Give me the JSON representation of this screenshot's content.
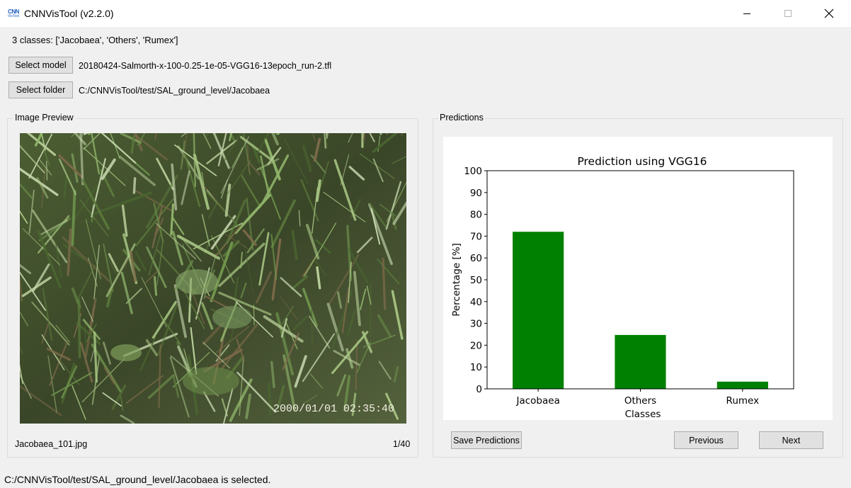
{
  "window": {
    "title": "CNNVisTool (v2.2.0)",
    "icon_line1": "CNN",
    "icon_line2": "VisTool",
    "minimize_icon": "minimize-icon",
    "maximize_icon": "maximize-icon",
    "close_icon": "close-icon"
  },
  "classes_label": "3 classes: ['Jacobaea', 'Others', 'Rumex']",
  "model": {
    "button_label": "Select model",
    "path": "20180424-Salmorth-x-100-0.25-1e-05-VGG16-13epoch_run-2.tfl"
  },
  "folder": {
    "button_label": "Select folder",
    "path": "C:/CNNVisTool/test/SAL_ground_level/Jacobaea"
  },
  "preview": {
    "group_title": "Image Preview",
    "timestamp": "2000/01/01 02:35:40",
    "filename": "Jacobaea_101.jpg",
    "counter": "1/40"
  },
  "predictions": {
    "group_title": "Predictions",
    "save_label": "Save Predictions",
    "previous_label": "Previous",
    "next_label": "Next"
  },
  "chart_data": {
    "type": "bar",
    "title": "Prediction using VGG16",
    "xlabel": "Classes",
    "ylabel": "Percentage [%]",
    "categories": [
      "Jacobaea",
      "Others",
      "Rumex"
    ],
    "values": [
      72,
      24.7,
      3.3
    ],
    "ylim": [
      0,
      100
    ],
    "yticks": [
      0,
      10,
      20,
      30,
      40,
      50,
      60,
      70,
      80,
      90,
      100
    ],
    "bar_color": "#008000",
    "grid": false
  },
  "status": "C:/CNNVisTool/test/SAL_ground_level/Jacobaea is selected."
}
